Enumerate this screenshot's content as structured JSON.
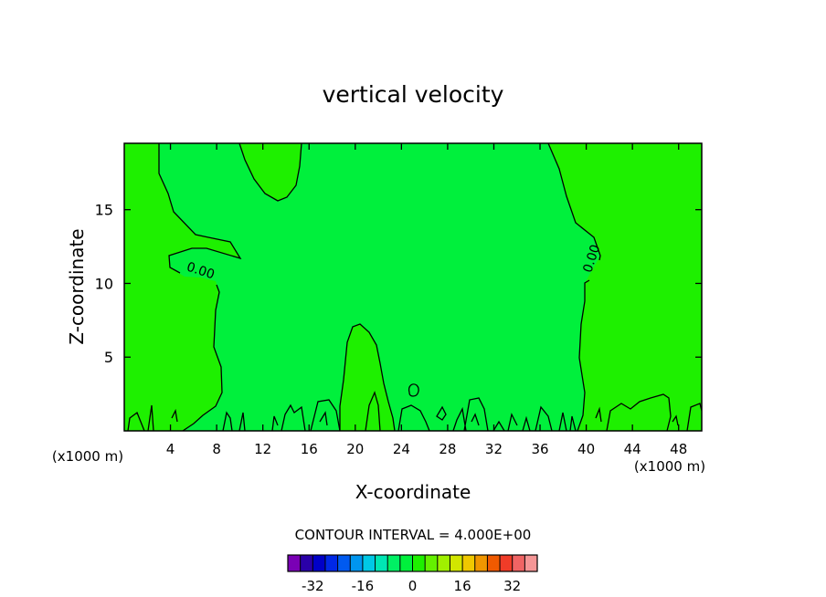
{
  "chart_data": {
    "type": "contour",
    "title": "vertical velocity",
    "xlabel": "X-coordinate",
    "ylabel": "Z-coordinate",
    "x_unit": "(x1000 m)",
    "x_unit_right": "(x1000 m)",
    "xlim": [
      0,
      50
    ],
    "ylim": [
      0,
      19.5
    ],
    "x_ticks": [
      4,
      8,
      12,
      16,
      20,
      24,
      28,
      32,
      36,
      40,
      44,
      48
    ],
    "y_ticks": [
      5,
      10,
      15
    ],
    "contour_labels": [
      {
        "text": "0.00",
        "x": 6.5,
        "y": 10.6
      },
      {
        "text": "0.00",
        "x": 40.8,
        "y": 11.6
      }
    ],
    "contour_interval_text": "CONTOUR INTERVAL = 4.000E+00",
    "colorbar": {
      "levels": [
        -36,
        -32,
        -28,
        -24,
        -20,
        -16,
        -12,
        -8,
        -4,
        0,
        4,
        8,
        12,
        16,
        20,
        24,
        28,
        32,
        36
      ],
      "tick_labels": [
        "-32",
        "-16",
        "0",
        "16",
        "32"
      ],
      "tick_values": [
        -32,
        -16,
        0,
        16,
        32
      ],
      "colors": [
        "#7a00b5",
        "#2a00a8",
        "#0000c8",
        "#0028e6",
        "#005af0",
        "#0096f0",
        "#00c8e6",
        "#00e6b4",
        "#00f064",
        "#00f03c",
        "#1ef000",
        "#64f000",
        "#a0f000",
        "#d2e600",
        "#f0c800",
        "#f09600",
        "#f05a00",
        "#f03c28",
        "#f06464",
        "#f59696"
      ]
    },
    "regions": {
      "background_color": "#00f03c",
      "positive_color": "#1ef000",
      "contour_color": "#000000"
    }
  }
}
